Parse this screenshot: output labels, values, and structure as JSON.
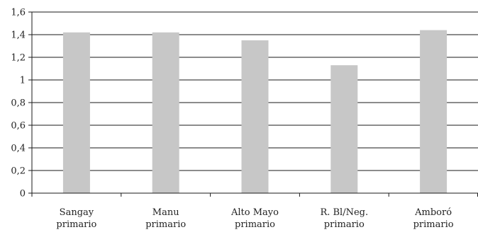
{
  "chart_data": {
    "type": "bar",
    "categories": [
      [
        "Sangay",
        "primario"
      ],
      [
        "Manu",
        "primario"
      ],
      [
        "Alto Mayo",
        "primario"
      ],
      [
        "R. Bl/Neg.",
        "primario"
      ],
      [
        "Amboró",
        "primario"
      ]
    ],
    "values": [
      1.42,
      1.42,
      1.35,
      1.13,
      1.44
    ],
    "yticks": [
      "0",
      "0,2",
      "0,4",
      "0,6",
      "0,8",
      "1",
      "1,2",
      "1,4",
      "1,6"
    ],
    "ylim": [
      0,
      1.6
    ],
    "grid": true,
    "bar_color": "#c7c7c7",
    "title": "",
    "xlabel": "",
    "ylabel": ""
  }
}
